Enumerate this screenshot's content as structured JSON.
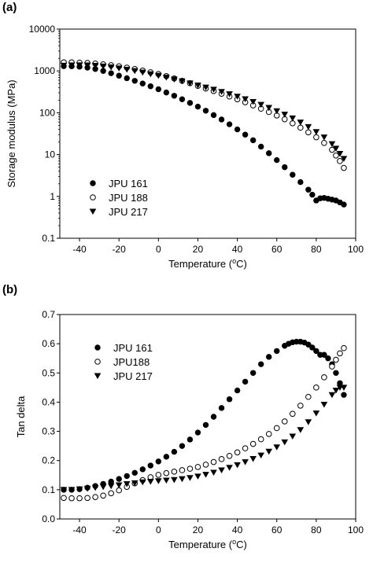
{
  "figure": {
    "background": "#ffffff",
    "marker_color": "#000000"
  },
  "chart_data": [
    {
      "panel_label": "(a)",
      "type": "scatter",
      "title": "",
      "xlabel": "Temperature (°C)",
      "xlabel_main": "Temperature (",
      "xlabel_sup": "o",
      "xlabel_end": "C)",
      "ylabel": "Storage modulus (MPa)",
      "y_scale": "log",
      "xlim": [
        -50,
        100
      ],
      "ylim": [
        0.1,
        10000
      ],
      "x_ticks": [
        -40,
        -20,
        0,
        20,
        40,
        60,
        80,
        100
      ],
      "x_tick_labels": [
        "-40",
        "-20",
        "0",
        "20",
        "40",
        "60",
        "80",
        "100"
      ],
      "y_ticks": [
        0.1,
        1,
        10,
        100,
        1000,
        10000
      ],
      "y_tick_labels": [
        "0.1",
        "1",
        "10",
        "100",
        "1000",
        "10000"
      ],
      "grid": false,
      "legend_position": "bottom-left",
      "series": [
        {
          "name": "JPU 161",
          "marker": "filled-circle",
          "x": [
            -48,
            -44,
            -40,
            -36,
            -32,
            -28,
            -24,
            -20,
            -16,
            -12,
            -8,
            -4,
            0,
            4,
            8,
            12,
            16,
            20,
            24,
            28,
            32,
            36,
            40,
            44,
            48,
            52,
            56,
            60,
            64,
            68,
            72,
            76,
            78,
            80,
            82,
            84,
            86,
            88,
            90,
            92,
            94
          ],
          "y": [
            1300,
            1290,
            1260,
            1200,
            1110,
            1000,
            880,
            770,
            670,
            580,
            500,
            430,
            365,
            305,
            255,
            210,
            172,
            140,
            112,
            88,
            69,
            53,
            40,
            30,
            22,
            15.5,
            10.8,
            7.4,
            5.0,
            3.3,
            2.2,
            1.45,
            1.1,
            0.8,
            0.9,
            0.92,
            0.88,
            0.84,
            0.8,
            0.72,
            0.64
          ]
        },
        {
          "name": "JPU 188",
          "marker": "open-circle",
          "x": [
            -48,
            -44,
            -40,
            -36,
            -32,
            -28,
            -24,
            -20,
            -16,
            -12,
            -8,
            -4,
            0,
            4,
            8,
            12,
            16,
            20,
            24,
            28,
            32,
            36,
            40,
            44,
            48,
            52,
            56,
            60,
            64,
            68,
            72,
            76,
            80,
            84,
            88,
            90,
            92,
            94
          ],
          "y": [
            1600,
            1600,
            1580,
            1550,
            1500,
            1440,
            1370,
            1290,
            1200,
            1110,
            1020,
            930,
            840,
            750,
            660,
            580,
            510,
            440,
            380,
            330,
            285,
            245,
            210,
            178,
            150,
            125,
            104,
            86,
            70,
            56,
            44,
            34,
            26,
            19,
            13,
            9.5,
            7,
            4.8
          ]
        },
        {
          "name": "JPU 217",
          "marker": "filled-triangle-down",
          "x": [
            -48,
            -44,
            -40,
            -36,
            -32,
            -28,
            -24,
            -20,
            -16,
            -12,
            -8,
            -4,
            0,
            4,
            8,
            12,
            16,
            20,
            24,
            28,
            32,
            36,
            40,
            44,
            48,
            52,
            56,
            60,
            64,
            68,
            72,
            76,
            80,
            84,
            88,
            90,
            92,
            94
          ],
          "y": [
            1350,
            1370,
            1380,
            1370,
            1340,
            1290,
            1230,
            1160,
            1080,
            1000,
            920,
            840,
            770,
            700,
            630,
            570,
            510,
            455,
            405,
            360,
            318,
            280,
            245,
            213,
            183,
            156,
            132,
            110,
            91,
            74,
            59,
            46,
            35,
            26,
            18,
            14,
            10.5,
            8
          ]
        }
      ]
    },
    {
      "panel_label": "(b)",
      "type": "scatter",
      "title": "",
      "xlabel": "Temperature (°C)",
      "xlabel_main": "Temperature (",
      "xlabel_sup": "o",
      "xlabel_end": "C)",
      "ylabel": "Tan delta",
      "y_scale": "linear",
      "xlim": [
        -50,
        100
      ],
      "ylim": [
        0.0,
        0.7
      ],
      "x_ticks": [
        -40,
        -20,
        0,
        20,
        40,
        60,
        80,
        100
      ],
      "x_tick_labels": [
        "-40",
        "-20",
        "0",
        "20",
        "40",
        "60",
        "80",
        "100"
      ],
      "y_ticks": [
        0.0,
        0.1,
        0.2,
        0.3,
        0.4,
        0.5,
        0.6,
        0.7
      ],
      "y_tick_labels": [
        "0.0",
        "0.1",
        "0.2",
        "0.3",
        "0.4",
        "0.5",
        "0.6",
        "0.7"
      ],
      "grid": false,
      "legend_position": "top-left",
      "series": [
        {
          "name": "JPU 161",
          "marker": "filled-circle",
          "x": [
            -48,
            -44,
            -40,
            -36,
            -32,
            -28,
            -24,
            -20,
            -16,
            -12,
            -8,
            -4,
            0,
            4,
            8,
            12,
            16,
            20,
            24,
            28,
            32,
            36,
            40,
            44,
            48,
            52,
            56,
            60,
            64,
            66,
            68,
            70,
            72,
            74,
            76,
            78,
            80,
            82,
            84,
            86,
            88,
            90,
            92,
            94
          ],
          "y": [
            0.1,
            0.1,
            0.102,
            0.107,
            0.113,
            0.12,
            0.128,
            0.137,
            0.147,
            0.158,
            0.17,
            0.183,
            0.197,
            0.213,
            0.23,
            0.25,
            0.272,
            0.296,
            0.322,
            0.35,
            0.38,
            0.41,
            0.44,
            0.47,
            0.5,
            0.53,
            0.555,
            0.575,
            0.593,
            0.6,
            0.605,
            0.607,
            0.607,
            0.604,
            0.597,
            0.587,
            0.575,
            0.562,
            0.562,
            0.55,
            0.53,
            0.5,
            0.465,
            0.425
          ]
        },
        {
          "name": "JPU188",
          "marker": "open-circle",
          "x": [
            -48,
            -44,
            -40,
            -36,
            -32,
            -28,
            -24,
            -20,
            -16,
            -12,
            -8,
            -4,
            0,
            4,
            8,
            12,
            16,
            20,
            24,
            28,
            32,
            36,
            40,
            44,
            48,
            52,
            56,
            60,
            64,
            68,
            72,
            76,
            80,
            84,
            88,
            90,
            92,
            94
          ],
          "y": [
            0.072,
            0.071,
            0.071,
            0.072,
            0.075,
            0.08,
            0.088,
            0.098,
            0.11,
            0.122,
            0.133,
            0.143,
            0.151,
            0.157,
            0.162,
            0.167,
            0.172,
            0.178,
            0.186,
            0.195,
            0.205,
            0.216,
            0.228,
            0.242,
            0.257,
            0.273,
            0.291,
            0.311,
            0.334,
            0.36,
            0.388,
            0.418,
            0.45,
            0.485,
            0.522,
            0.545,
            0.567,
            0.585
          ]
        },
        {
          "name": "JPU 217",
          "marker": "filled-triangle-down",
          "x": [
            -48,
            -44,
            -40,
            -36,
            -32,
            -28,
            -24,
            -20,
            -16,
            -12,
            -8,
            -4,
            0,
            4,
            8,
            12,
            16,
            20,
            24,
            28,
            32,
            36,
            40,
            44,
            48,
            52,
            56,
            60,
            64,
            68,
            72,
            76,
            80,
            84,
            88,
            90,
            92,
            94
          ],
          "y": [
            0.1,
            0.1,
            0.102,
            0.104,
            0.107,
            0.11,
            0.113,
            0.116,
            0.12,
            0.123,
            0.126,
            0.128,
            0.13,
            0.132,
            0.134,
            0.137,
            0.141,
            0.146,
            0.152,
            0.159,
            0.167,
            0.176,
            0.185,
            0.195,
            0.206,
            0.218,
            0.231,
            0.246,
            0.263,
            0.283,
            0.305,
            0.332,
            0.362,
            0.392,
            0.425,
            0.44,
            0.45,
            0.45
          ]
        }
      ]
    }
  ]
}
